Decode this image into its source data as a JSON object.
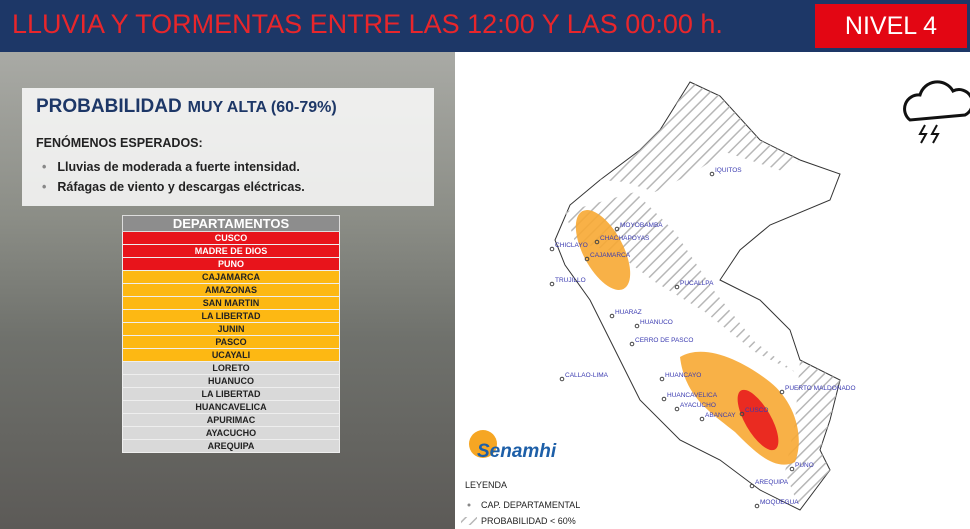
{
  "header": {
    "title": "LLUVIA Y TORMENTAS ENTRE LAS 12:00 Y LAS 00:00 h.",
    "level": "NIVEL 4"
  },
  "panel": {
    "probability": "PROBABILIDAD",
    "probability_level": "MUY ALTA (60-79%)",
    "phenomena_title": "FENÓMENOS ESPERADOS:",
    "phenomena": [
      "Lluvias de  moderada a fuerte  intensidad.",
      "Ráfagas de viento y descargas eléctricas."
    ]
  },
  "table": {
    "header": "DEPARTAMENTOS",
    "groups": [
      {
        "color": "#e8141b",
        "text_color": "#ffffff",
        "rows": [
          "CUSCO",
          "MADRE DE DIOS",
          "PUNO"
        ]
      },
      {
        "color": "#fdb813",
        "text_color": "#222222",
        "rows": [
          "CAJAMARCA",
          "AMAZONAS",
          "SAN MARTIN",
          "LA LIBERTAD",
          "JUNIN",
          "PASCO",
          "UCAYALI"
        ]
      },
      {
        "color": "#d9d9d9",
        "text_color": "#222222",
        "rows": [
          "LORETO",
          "HUANUCO",
          "LA LIBERTAD",
          "HUANCAVELICA",
          "APURIMAC",
          "AYACUCHO",
          "AREQUIPA"
        ]
      }
    ]
  },
  "map": {
    "cities": [
      "IQUITOS",
      "CHACHAPOYAS",
      "MOYOBAMBA",
      "CHICLAYO",
      "CAJAMARCA",
      "TRUJILLO",
      "PUCALLPA",
      "HUARAZ",
      "HUANUCO",
      "CERRO DE PASCO",
      "CALLAO-LIMA",
      "HUANCAYO",
      "HUANCAVELICA",
      "AYACUCHO",
      "ABANCAY",
      "CUSCO",
      "PUERTO MALDONADO",
      "PUNO",
      "AREQUIPA",
      "MOQUEGUA"
    ],
    "logo": "Senamhi",
    "legend": {
      "title": "LEYENDA",
      "capital": "CAP. DEPARTAMENTAL",
      "hatch": "PROBABILIDAD < 60%"
    }
  }
}
